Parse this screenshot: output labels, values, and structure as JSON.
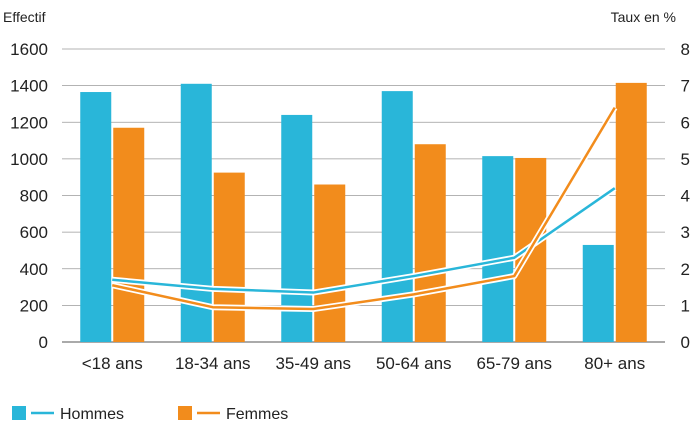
{
  "chart_data": {
    "type": "bar",
    "title": "",
    "xlabel": "",
    "categories": [
      "<18 ans",
      "18-34 ans",
      "35-49 ans",
      "50-64 ans",
      "65-79 ans",
      "80+ ans"
    ],
    "y_left": {
      "label": "Effectif",
      "range": [
        0,
        1600
      ],
      "ticks": [
        "0",
        "200",
        "400",
        "600",
        "800",
        "1000",
        "1200",
        "1400",
        "1600"
      ]
    },
    "y_right": {
      "label": "Taux en %",
      "range": [
        0,
        8
      ],
      "ticks": [
        "0",
        "1",
        "2",
        "3",
        "4",
        "5",
        "6",
        "7",
        "8"
      ]
    },
    "grid": "horizontal",
    "legend_position": "bottom-left",
    "bar_series": [
      {
        "name": "Hommes",
        "axis": "left",
        "color": "#29b6d9",
        "values": [
          1365,
          1410,
          1240,
          1370,
          1015,
          530
        ]
      },
      {
        "name": "Femmes",
        "axis": "left",
        "color": "#f28c1c",
        "values": [
          1170,
          925,
          860,
          1080,
          1005,
          1415
        ]
      }
    ],
    "line_series": [
      {
        "name": "Hommes",
        "axis": "right",
        "color": "#29b6d9",
        "values": [
          1.7,
          1.45,
          1.35,
          1.8,
          2.3,
          4.2
        ]
      },
      {
        "name": "Femmes",
        "axis": "right",
        "color": "#f28c1c",
        "values": [
          1.55,
          0.95,
          0.9,
          1.3,
          1.8,
          6.4
        ]
      }
    ],
    "legend": [
      {
        "label": "Hommes",
        "color": "#29b6d9"
      },
      {
        "label": "Femmes",
        "color": "#f28c1c"
      }
    ]
  }
}
